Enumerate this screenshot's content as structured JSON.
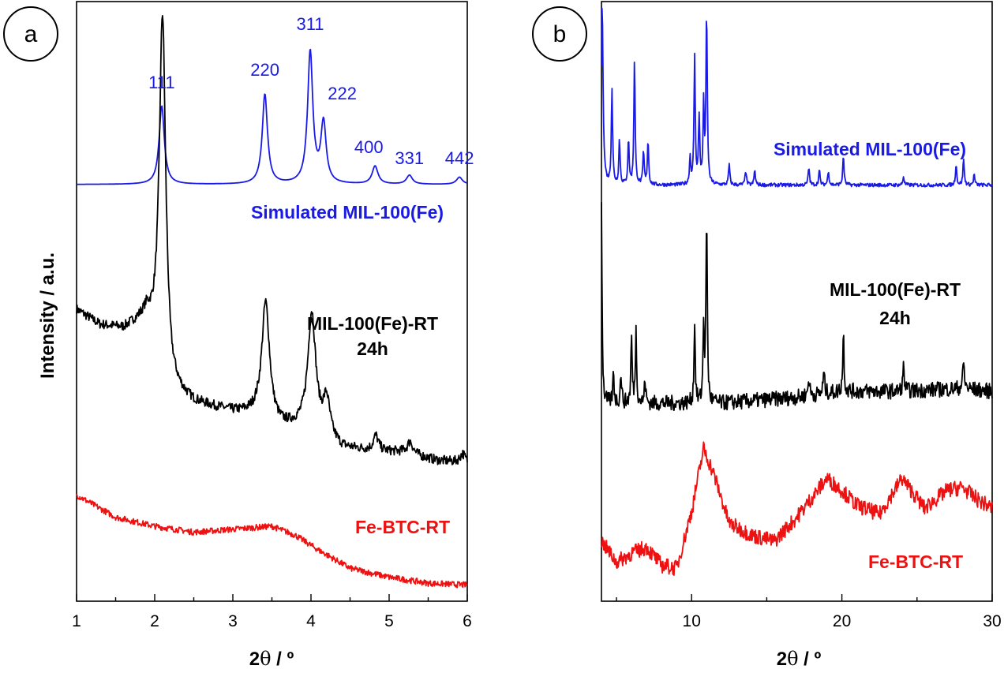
{
  "chart_data": [
    {
      "type": "line",
      "panel": "a",
      "xlabel_prefix": "2",
      "xlabel_theta": "θ",
      "xlabel_suffix": " / º",
      "ylabel": "Intensity / a.u.",
      "xlim": [
        1,
        6
      ],
      "ylim": [
        0,
        100
      ],
      "xticks": [
        "1",
        "2",
        "3",
        "4",
        "5",
        "6"
      ],
      "yticks_shown": false,
      "series": [
        {
          "name": "Simulated MIL-100(Fe)",
          "color": "#1a1ae6",
          "baseline": 69.5,
          "peaks": [
            {
              "x": 2.09,
              "h": 13.1,
              "w": 0.04
            },
            {
              "x": 3.41,
              "h": 15.0,
              "w": 0.04
            },
            {
              "x": 3.99,
              "h": 22.0,
              "w": 0.04
            },
            {
              "x": 4.16,
              "h": 10.0,
              "w": 0.04
            },
            {
              "x": 4.82,
              "h": 3.0,
              "w": 0.045
            },
            {
              "x": 5.26,
              "h": 1.5,
              "w": 0.045
            },
            {
              "x": 5.9,
              "h": 1.2,
              "w": 0.045
            }
          ],
          "peak_labels": [
            {
              "text": "111",
              "x": 2.09
            },
            {
              "text": "220",
              "x": 3.41
            },
            {
              "text": "311",
              "x": 3.99
            },
            {
              "text": "222",
              "x": 4.4
            },
            {
              "text": "400",
              "x": 4.74
            },
            {
              "text": "331",
              "x": 5.26
            },
            {
              "text": "442",
              "x": 5.9
            }
          ]
        },
        {
          "name": "MIL-100(Fe)-RT",
          "name_line2": "24h",
          "color": "#000000",
          "background": [
            [
              1.0,
              48.6
            ],
            [
              1.3,
              46.0
            ],
            [
              1.6,
              45.3
            ],
            [
              1.9,
              47.0
            ],
            [
              2.2,
              35.0
            ],
            [
              2.5,
              33.0
            ],
            [
              3.0,
              31.5
            ],
            [
              3.3,
              31.0
            ],
            [
              3.6,
              29.0
            ],
            [
              4.0,
              29.0
            ],
            [
              4.4,
              25.5
            ],
            [
              4.8,
              25.0
            ],
            [
              5.2,
              24.8
            ],
            [
              5.6,
              23.5
            ],
            [
              6.0,
              23.0
            ]
          ],
          "peaks": [
            {
              "x": 2.1,
              "h": 59.0,
              "w": 0.05
            },
            {
              "x": 3.42,
              "h": 19.5,
              "w": 0.06
            },
            {
              "x": 4.01,
              "h": 19.0,
              "w": 0.06
            },
            {
              "x": 4.2,
              "h": 6.0,
              "w": 0.05
            },
            {
              "x": 4.83,
              "h": 2.5,
              "w": 0.04
            },
            {
              "x": 5.27,
              "h": 2.0,
              "w": 0.04
            },
            {
              "x": 5.94,
              "h": 1.5,
              "w": 0.04
            }
          ],
          "noise": 0.8
        },
        {
          "name": "Fe-BTC-RT",
          "color": "#ee1111",
          "background": [
            [
              1.0,
              17.7
            ],
            [
              1.5,
              14.0
            ],
            [
              2.0,
              12.5
            ],
            [
              2.5,
              11.5
            ],
            [
              3.0,
              12.0
            ],
            [
              3.5,
              12.5
            ],
            [
              3.8,
              11.0
            ],
            [
              4.1,
              8.5
            ],
            [
              4.5,
              5.5
            ],
            [
              5.0,
              4.0
            ],
            [
              5.5,
              3.0
            ],
            [
              6.0,
              2.7
            ]
          ],
          "peaks": [],
          "noise": 0.5
        }
      ]
    },
    {
      "type": "line",
      "panel": "b",
      "xlabel_prefix": "2",
      "xlabel_theta": "θ",
      "xlabel_suffix": " / º",
      "xlim": [
        4,
        30
      ],
      "ylim": [
        0,
        100
      ],
      "xticks": [
        "10",
        "20",
        "30"
      ],
      "yticks_shown": false,
      "series": [
        {
          "name": "Simulated MIL-100(Fe)",
          "color": "#1a1ae6",
          "baseline": 69.4,
          "peaks": [
            {
              "x": 4.05,
              "h": 30.0,
              "w": 0.07
            },
            {
              "x": 4.7,
              "h": 16.0,
              "w": 0.05
            },
            {
              "x": 5.2,
              "h": 7.5,
              "w": 0.05
            },
            {
              "x": 5.8,
              "h": 7.5,
              "w": 0.05
            },
            {
              "x": 6.2,
              "h": 21.0,
              "w": 0.05
            },
            {
              "x": 6.8,
              "h": 5.5,
              "w": 0.05
            },
            {
              "x": 7.1,
              "h": 7.5,
              "w": 0.05
            },
            {
              "x": 9.9,
              "h": 4.5,
              "w": 0.05
            },
            {
              "x": 10.2,
              "h": 21.5,
              "w": 0.05
            },
            {
              "x": 10.5,
              "h": 11.0,
              "w": 0.05
            },
            {
              "x": 10.8,
              "h": 13.0,
              "w": 0.05
            },
            {
              "x": 11.0,
              "h": 29.0,
              "w": 0.05
            },
            {
              "x": 12.5,
              "h": 3.5,
              "w": 0.05
            },
            {
              "x": 13.6,
              "h": 2.5,
              "w": 0.05
            },
            {
              "x": 14.2,
              "h": 2.5,
              "w": 0.05
            },
            {
              "x": 17.8,
              "h": 3.0,
              "w": 0.05
            },
            {
              "x": 18.5,
              "h": 2.5,
              "w": 0.05
            },
            {
              "x": 19.1,
              "h": 2.5,
              "w": 0.05
            },
            {
              "x": 20.1,
              "h": 5.0,
              "w": 0.05
            },
            {
              "x": 24.1,
              "h": 1.5,
              "w": 0.05
            },
            {
              "x": 27.6,
              "h": 3.5,
              "w": 0.05
            },
            {
              "x": 28.1,
              "h": 4.5,
              "w": 0.05
            },
            {
              "x": 28.8,
              "h": 1.8,
              "w": 0.05
            }
          ],
          "noise": 0.3
        },
        {
          "name": "MIL-100(Fe)-RT",
          "name_line2": "24h",
          "color": "#000000",
          "background": [
            [
              4.0,
              33.0
            ],
            [
              8.0,
              33.0
            ],
            [
              12.0,
              33.0
            ],
            [
              17.0,
              34.0
            ],
            [
              20.0,
              35.0
            ],
            [
              24.0,
              35.0
            ],
            [
              28.0,
              35.5
            ],
            [
              30.0,
              35.0
            ]
          ],
          "peaks": [
            {
              "x": 4.0,
              "h": 33.0,
              "w": 0.05
            },
            {
              "x": 4.8,
              "h": 5.0,
              "w": 0.05
            },
            {
              "x": 5.3,
              "h": 5.0,
              "w": 0.05
            },
            {
              "x": 6.0,
              "h": 11.0,
              "w": 0.05
            },
            {
              "x": 6.3,
              "h": 12.0,
              "w": 0.05
            },
            {
              "x": 6.9,
              "h": 4.0,
              "w": 0.05
            },
            {
              "x": 10.2,
              "h": 13.5,
              "w": 0.05
            },
            {
              "x": 10.8,
              "h": 13.0,
              "w": 0.05
            },
            {
              "x": 11.0,
              "h": 31.5,
              "w": 0.05
            },
            {
              "x": 17.8,
              "h": 3.0,
              "w": 0.06
            },
            {
              "x": 18.8,
              "h": 3.5,
              "w": 0.06
            },
            {
              "x": 20.1,
              "h": 10.0,
              "w": 0.05
            },
            {
              "x": 24.1,
              "h": 4.0,
              "w": 0.06
            },
            {
              "x": 28.1,
              "h": 4.5,
              "w": 0.06
            }
          ],
          "noise": 1.3
        },
        {
          "name": "Fe-BTC-RT",
          "color": "#ee1111",
          "background": [
            [
              4.0,
              10.0
            ],
            [
              5.0,
              6.5
            ],
            [
              6.0,
              8.0
            ],
            [
              7.0,
              9.0
            ],
            [
              8.0,
              6.0
            ],
            [
              9.0,
              5.5
            ],
            [
              10.0,
              15.0
            ],
            [
              10.8,
              25.5
            ],
            [
              11.5,
              21.0
            ],
            [
              12.5,
              13.0
            ],
            [
              14.0,
              11.0
            ],
            [
              15.5,
              10.0
            ],
            [
              17.0,
              14.0
            ],
            [
              19.0,
              20.5
            ],
            [
              20.0,
              18.5
            ],
            [
              21.0,
              16.0
            ],
            [
              22.5,
              14.5
            ],
            [
              24.0,
              20.5
            ],
            [
              25.5,
              15.5
            ],
            [
              27.0,
              18.5
            ],
            [
              28.0,
              19.0
            ],
            [
              29.0,
              17.0
            ],
            [
              30.0,
              15.5
            ]
          ],
          "peaks": [],
          "noise": 1.3
        }
      ]
    }
  ]
}
